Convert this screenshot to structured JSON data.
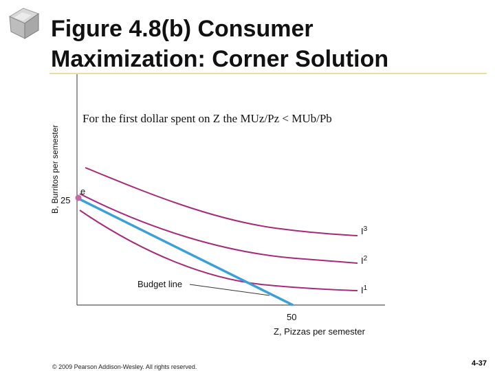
{
  "slide": {
    "title_line1": "Figure 4.8(b) Consumer",
    "title_line2": "Maximization: Corner Solution",
    "footer": "© 2009 Pearson Addison-Wesley. All rights reserved.",
    "page_number": "4-37"
  },
  "chart_data": {
    "type": "line",
    "ylabel": "B, Burritos per semester",
    "xlabel": "Z, Pizzas per semester",
    "annotation": "For the first dollar spent on Z the MUz/Pz < MUb/Pb",
    "y_tick": "25",
    "x_tick": "50",
    "point_label": "e",
    "budget_label": "Budget line",
    "budget_line": {
      "from": [
        0,
        25
      ],
      "to": [
        50,
        0
      ]
    },
    "indifference_curves": [
      {
        "name": "I",
        "sub": "3"
      },
      {
        "name": "I",
        "sub": "2"
      },
      {
        "name": "I",
        "sub": "1"
      }
    ],
    "colors": {
      "budget": "#3aa0d8",
      "curves": "#a8287a",
      "point": "#c06aa8",
      "axes": "#555555"
    }
  }
}
